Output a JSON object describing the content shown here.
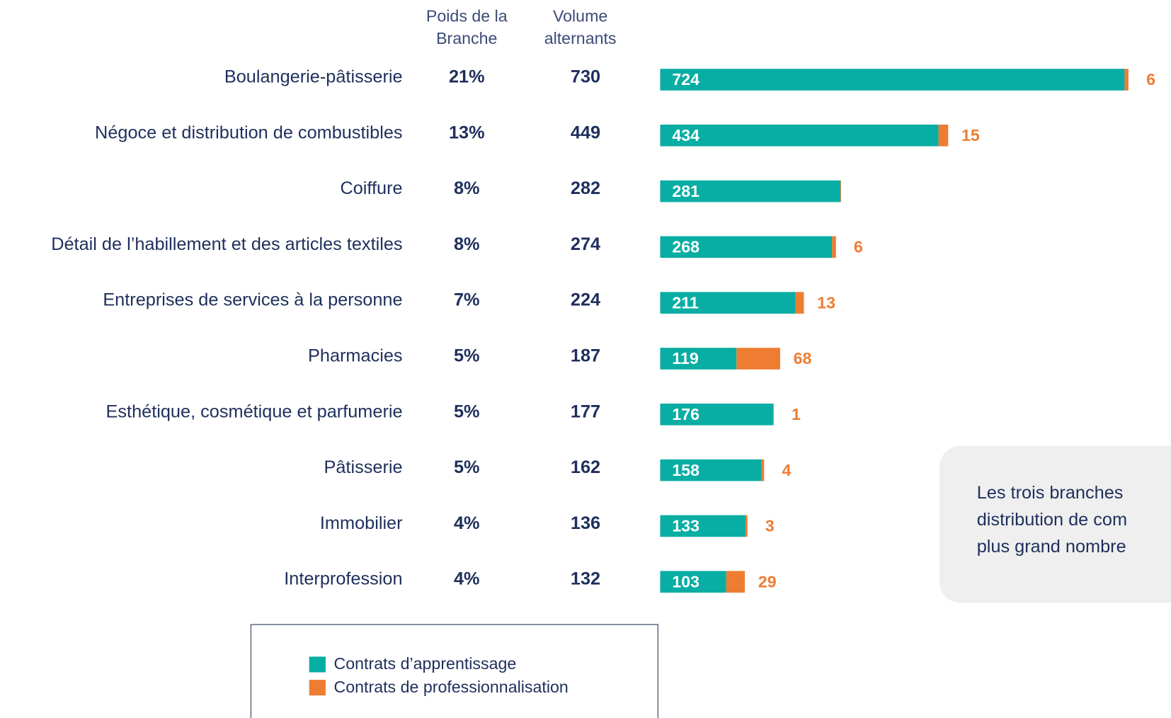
{
  "chart_data": {
    "type": "stacked-bar-horizontal",
    "categories": [
      "Boulangerie-pâtisserie",
      "Négoce et distribution de combustibles",
      "Coiffure",
      "Détail de l’habillement et des articles textiles",
      "Entreprises de services à la personne",
      "Pharmacies",
      "Esthétique, cosmétique et parfumerie",
      "Pâtisserie",
      "Immobilier",
      "Interprofession"
    ],
    "weight": {
      "header": [
        "Poids de la",
        "Branche"
      ],
      "values": [
        21,
        13,
        8,
        8,
        7,
        5,
        5,
        5,
        4,
        4
      ],
      "value_labels": [
        "21%",
        "13%",
        "8%",
        "8%",
        "7%",
        "5%",
        "5%",
        "5%",
        "4%",
        "4%"
      ]
    },
    "volume": {
      "header": [
        "Volume",
        "alternants"
      ],
      "values": [
        730,
        449,
        282,
        274,
        224,
        187,
        177,
        162,
        136,
        132
      ]
    },
    "series": [
      {
        "name": "Contrats d’apprentissage",
        "color": "#08ada3",
        "values": [
          724,
          434,
          281,
          268,
          211,
          119,
          176,
          158,
          133,
          103
        ]
      },
      {
        "name": "Contrats de professionnalisation",
        "color": "#ee7d31",
        "values": [
          6,
          15,
          1,
          6,
          13,
          68,
          1,
          4,
          3,
          29
        ],
        "value_labels": [
          "6",
          "15",
          null,
          "6",
          "13",
          "68",
          "1",
          "4",
          "3",
          "29"
        ]
      }
    ],
    "note": [
      "Les trois branches",
      "distribution de com",
      "plus grand nombre"
    ]
  }
}
